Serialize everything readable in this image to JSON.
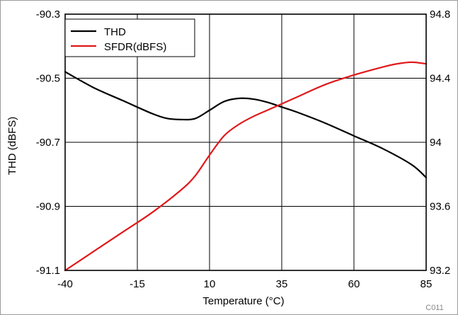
{
  "chart_data": {
    "type": "line",
    "xlabel": "Temperature (°C)",
    "ylabel_left": "THD (dBFS)",
    "figure_code": "C011",
    "xlim": [
      -40,
      85
    ],
    "x_ticks": [
      "-40",
      "-15",
      "10",
      "35",
      "60",
      "85"
    ],
    "ylim_left": [
      -91.1,
      -90.3
    ],
    "y_ticks_left": [
      "-90.3",
      "-90.5",
      "-90.7",
      "-90.9",
      "-91.1"
    ],
    "ylim_right": [
      93.2,
      94.8
    ],
    "y_ticks_right": [
      "94.8",
      "94.4",
      "94",
      "93.6",
      "93.2"
    ],
    "grid": true,
    "legend_position": "top-left",
    "series": [
      {
        "name": "THD",
        "axis": "left",
        "color": "#000000",
        "x": [
          -40,
          -30,
          -20,
          -10,
          -5,
          0,
          5,
          10,
          15,
          20,
          25,
          30,
          35,
          40,
          50,
          60,
          70,
          80,
          85
        ],
        "y": [
          -90.48,
          -90.53,
          -90.57,
          -90.61,
          -90.625,
          -90.629,
          -90.626,
          -90.6,
          -90.573,
          -90.563,
          -90.565,
          -90.575,
          -90.59,
          -90.605,
          -90.64,
          -90.68,
          -90.72,
          -90.77,
          -90.81
        ]
      },
      {
        "name": "SFDR(dBFS)",
        "axis": "right",
        "color": "#e0191b",
        "x": [
          -40,
          -30,
          -20,
          -10,
          0,
          5,
          10,
          15,
          20,
          25,
          30,
          35,
          40,
          50,
          60,
          70,
          75,
          80,
          85
        ],
        "y": [
          93.2,
          93.32,
          93.44,
          93.56,
          93.7,
          93.79,
          93.92,
          94.04,
          94.11,
          94.16,
          94.2,
          94.24,
          94.28,
          94.36,
          94.42,
          94.47,
          94.49,
          94.5,
          94.49
        ]
      }
    ]
  }
}
